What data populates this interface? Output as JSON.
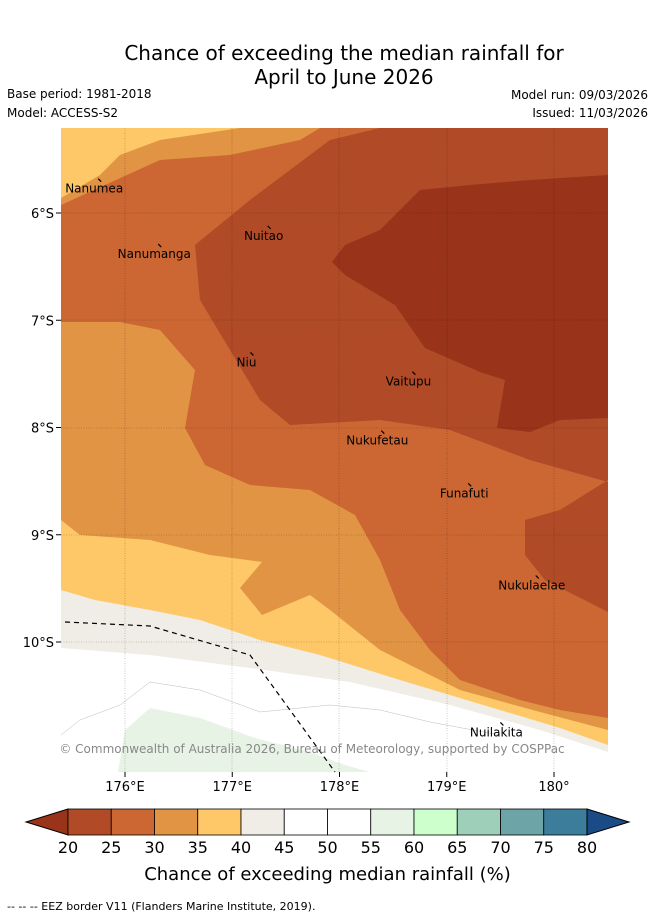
{
  "header": {
    "title_line1": "Chance of exceeding the median rainfall for",
    "title_line2": "April to June 2026",
    "base_period": "Base period: 1981-2018",
    "model": "Model: ACCESS-S2",
    "model_run": "Model run: 09/03/2026",
    "issued": "Issued: 11/03/2026"
  },
  "map": {
    "lon_ticks": [
      "176°E",
      "177°E",
      "178°E",
      "179°E",
      "180°"
    ],
    "lat_ticks": [
      "6°S",
      "7°S",
      "8°S",
      "9°S",
      "10°S"
    ],
    "lon_values": [
      176,
      177,
      178,
      179,
      180
    ],
    "lat_values": [
      -6,
      -7,
      -8,
      -9,
      -10
    ],
    "islands": [
      {
        "name": "Nanumea",
        "lon": 175.75,
        "lat": -5.68
      },
      {
        "name": "Nanumanga",
        "lon": 176.31,
        "lat": -6.29
      },
      {
        "name": "Nuitao",
        "lon": 177.33,
        "lat": -6.12
      },
      {
        "name": "Niu",
        "lon": 177.17,
        "lat": -7.3
      },
      {
        "name": "Vaitupu",
        "lon": 178.68,
        "lat": -7.48
      },
      {
        "name": "Nukufetau",
        "lon": 178.39,
        "lat": -8.03
      },
      {
        "name": "Funafuti",
        "lon": 179.2,
        "lat": -8.52
      },
      {
        "name": "Nukulaelae",
        "lon": 179.83,
        "lat": -9.38
      },
      {
        "name": "Nuilakita",
        "lon": 179.5,
        "lat": -10.75
      }
    ],
    "copyright": "© Commonwealth of Australia 2026, Bureau of Meteorology, supported by COSPPac"
  },
  "colorbar": {
    "ticks": [
      "20",
      "25",
      "30",
      "35",
      "40",
      "45",
      "50",
      "55",
      "60",
      "65",
      "70",
      "75",
      "80"
    ],
    "colors": [
      "#b04a27",
      "#cc6633",
      "#e09444",
      "#fec868",
      "#f0ece6",
      "#ffffff",
      "#ffffff",
      "#e7f4e5",
      "#ccffcc",
      "#9dcfb9",
      "#6da4a7",
      "#3d7d9c"
    ],
    "low_extend_color": "#993319",
    "high_extend_color": "#1a4b87",
    "label": "Chance of exceeding median rainfall (%)"
  },
  "footnote": "--  --  -- EEZ border V11 (Flanders Marine Institute, 2019)."
}
